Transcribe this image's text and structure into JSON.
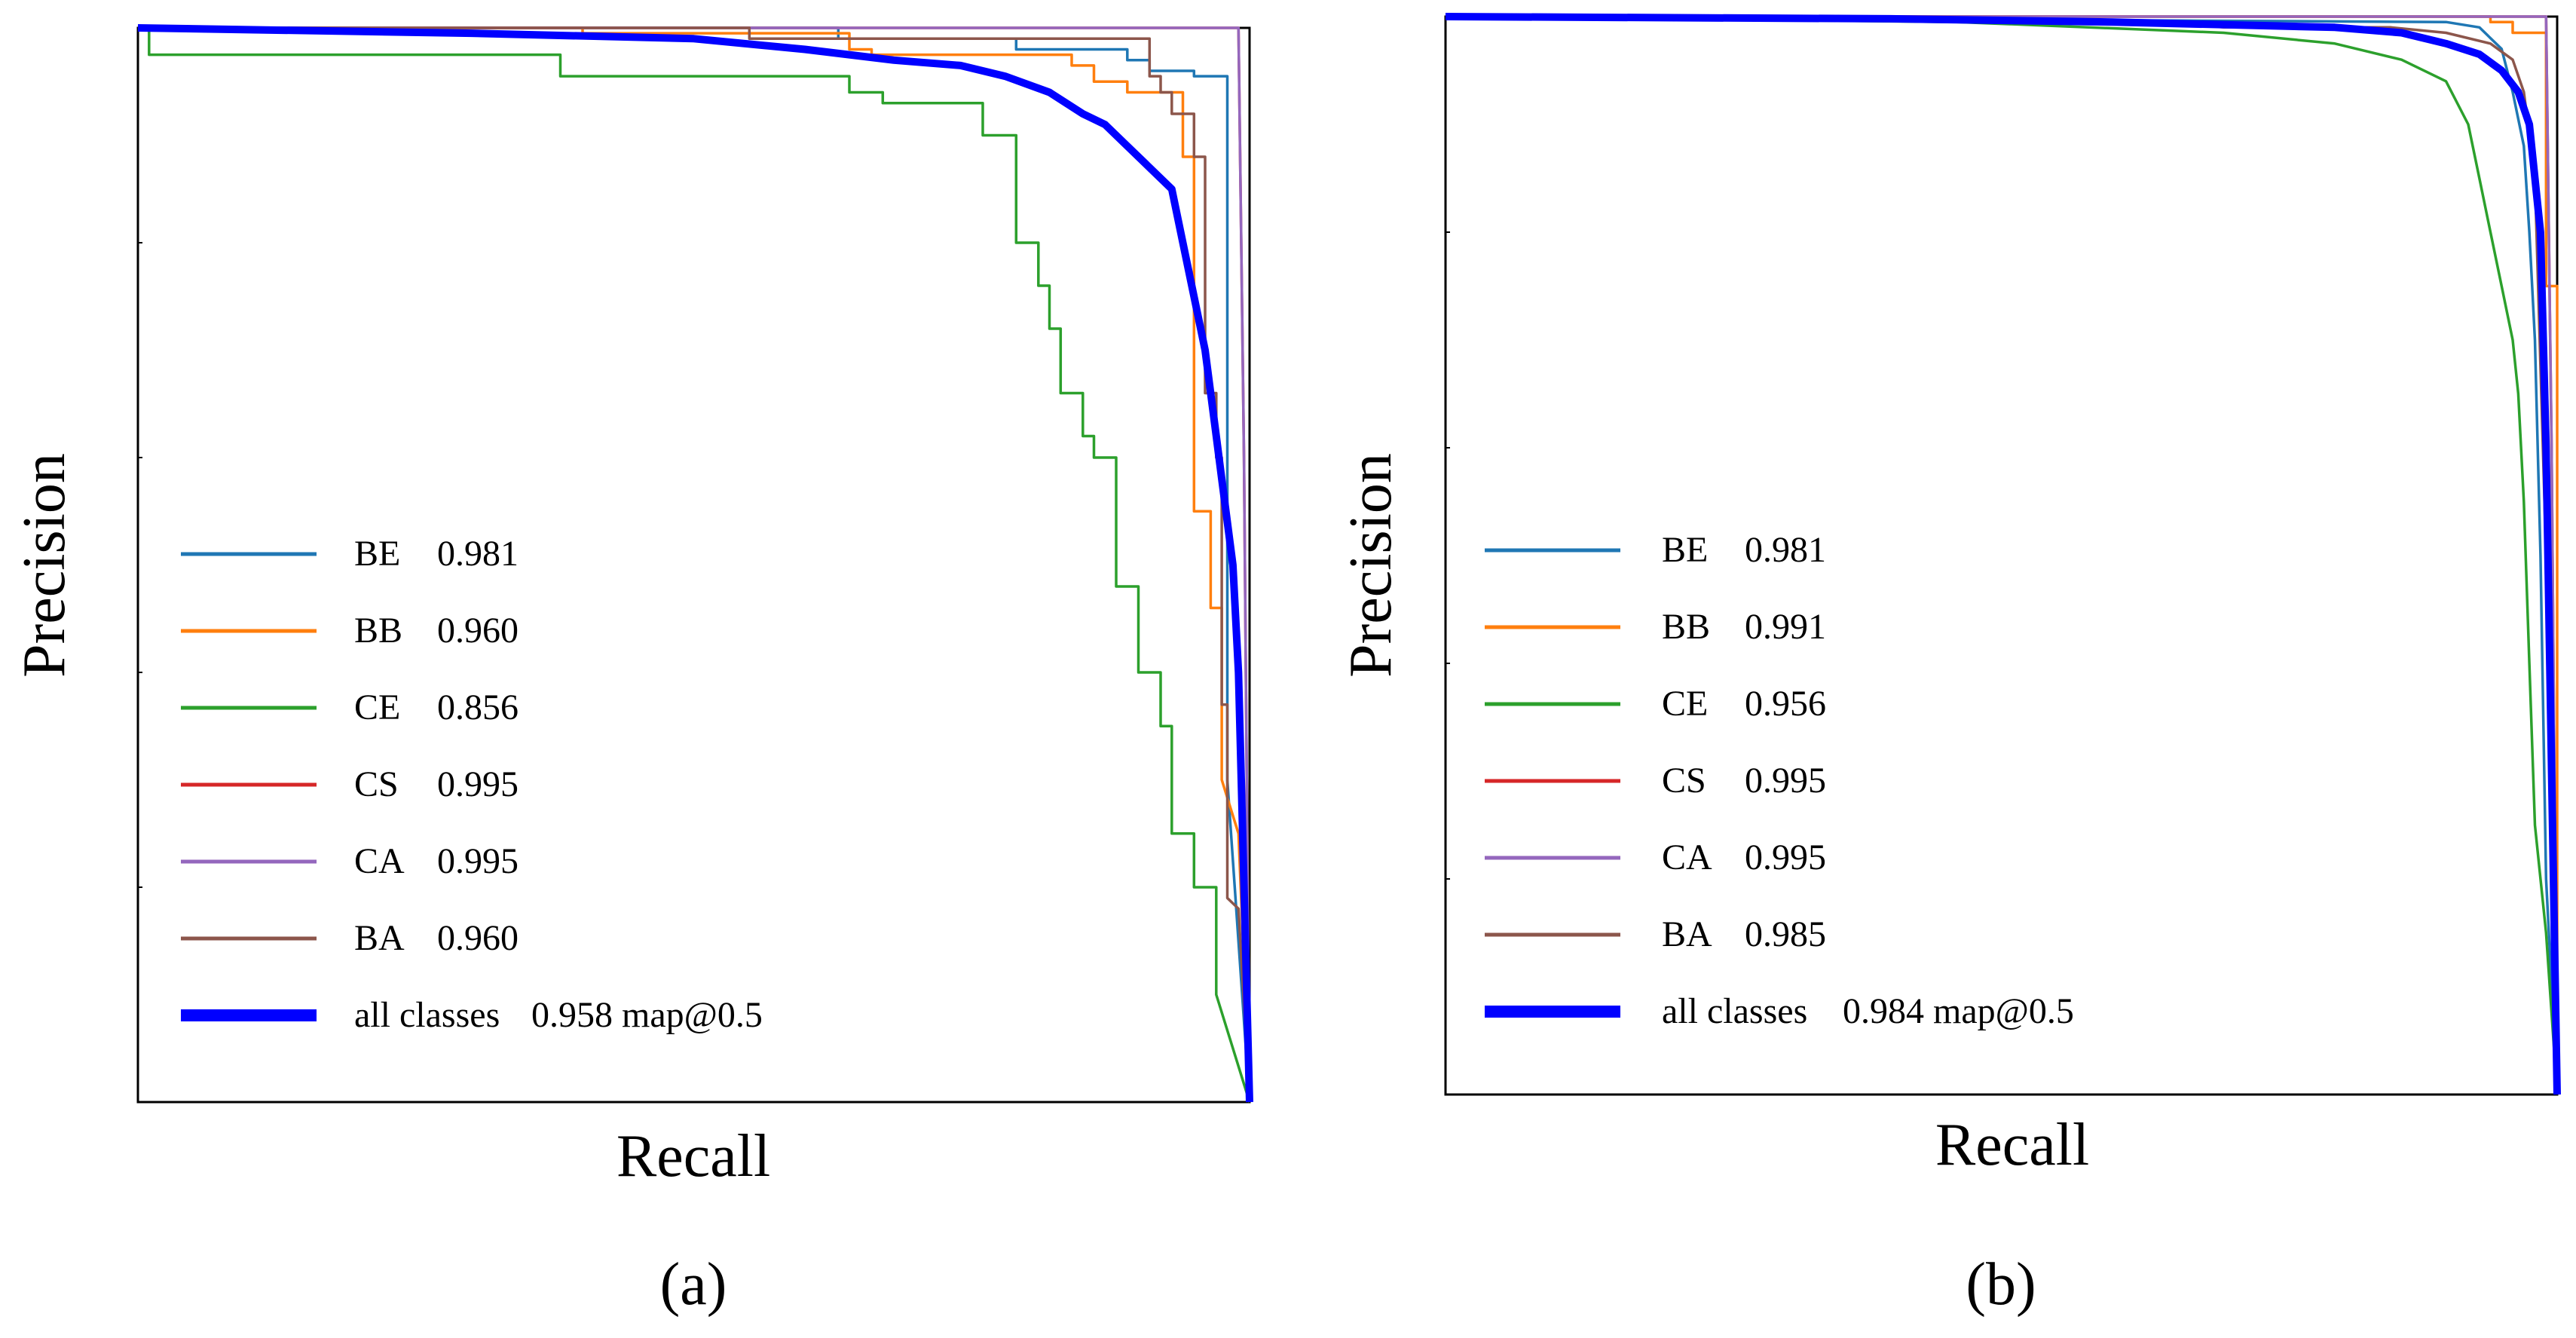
{
  "chart_data": [
    {
      "type": "line",
      "caption": "(a)",
      "xlabel": "Recall",
      "ylabel": "Precision",
      "xlim": [
        0,
        1
      ],
      "ylim": [
        0,
        1
      ],
      "grid": false,
      "legend_position": "center-left",
      "series": [
        {
          "name": "BE",
          "value": "0.981",
          "color": "#1f77b4",
          "x": [
            0,
            0.63,
            0.63,
            0.79,
            0.79,
            0.89,
            0.89,
            0.91,
            0.91,
            0.95,
            0.95,
            0.98,
            0.98,
            1.0
          ],
          "y": [
            1.0,
            1.0,
            0.99,
            0.99,
            0.98,
            0.98,
            0.97,
            0.97,
            0.96,
            0.96,
            0.955,
            0.955,
            0.3,
            0.0
          ]
        },
        {
          "name": "BB",
          "value": "0.960",
          "color": "#ff7f0e",
          "x": [
            0,
            0.4,
            0.4,
            0.64,
            0.64,
            0.66,
            0.66,
            0.84,
            0.84,
            0.86,
            0.86,
            0.89,
            0.89,
            0.94,
            0.94,
            0.95,
            0.95,
            0.965,
            0.965,
            0.975,
            0.975,
            0.99,
            1.0
          ],
          "y": [
            1.0,
            1.0,
            0.995,
            0.995,
            0.98,
            0.98,
            0.975,
            0.975,
            0.965,
            0.965,
            0.95,
            0.95,
            0.94,
            0.94,
            0.88,
            0.88,
            0.55,
            0.55,
            0.46,
            0.46,
            0.3,
            0.25,
            0.0
          ]
        },
        {
          "name": "CE",
          "value": "0.856",
          "color": "#2ca02c",
          "x": [
            0,
            0.01,
            0.01,
            0.38,
            0.38,
            0.64,
            0.64,
            0.67,
            0.67,
            0.76,
            0.76,
            0.79,
            0.79,
            0.81,
            0.81,
            0.82,
            0.82,
            0.83,
            0.83,
            0.85,
            0.85,
            0.86,
            0.86,
            0.88,
            0.88,
            0.9,
            0.9,
            0.92,
            0.92,
            0.93,
            0.93,
            0.95,
            0.95,
            0.97,
            0.97,
            1.0
          ],
          "y": [
            1.0,
            1.0,
            0.975,
            0.975,
            0.955,
            0.955,
            0.94,
            0.94,
            0.93,
            0.93,
            0.9,
            0.9,
            0.8,
            0.8,
            0.76,
            0.76,
            0.72,
            0.72,
            0.66,
            0.66,
            0.62,
            0.62,
            0.6,
            0.6,
            0.48,
            0.48,
            0.4,
            0.4,
            0.35,
            0.35,
            0.25,
            0.25,
            0.2,
            0.2,
            0.1,
            0.0
          ]
        },
        {
          "name": "CS",
          "value": "0.995",
          "color": "#d62728",
          "x": [
            0,
            0.99,
            0.995,
            1.0
          ],
          "y": [
            1.0,
            1.0,
            0.6,
            0.0
          ]
        },
        {
          "name": "CA",
          "value": "0.995",
          "color": "#9467bd",
          "x": [
            0,
            0.99,
            0.995,
            1.0
          ],
          "y": [
            1.0,
            1.0,
            0.6,
            0.0
          ]
        },
        {
          "name": "BA",
          "value": "0.960",
          "color": "#8c564b",
          "x": [
            0,
            0.55,
            0.55,
            0.91,
            0.91,
            0.92,
            0.92,
            0.93,
            0.93,
            0.95,
            0.95,
            0.96,
            0.96,
            0.97,
            0.97,
            0.975,
            0.975,
            0.98,
            0.98,
            0.99,
            1.0
          ],
          "y": [
            1.0,
            1.0,
            0.99,
            0.99,
            0.955,
            0.955,
            0.94,
            0.94,
            0.92,
            0.92,
            0.88,
            0.88,
            0.66,
            0.66,
            0.6,
            0.6,
            0.37,
            0.37,
            0.19,
            0.18,
            0.0
          ]
        },
        {
          "name": "all classes",
          "value": "0.958 map@0.5",
          "color": "#0000ff",
          "bold": true,
          "x": [
            0,
            0.3,
            0.5,
            0.6,
            0.68,
            0.74,
            0.78,
            0.82,
            0.85,
            0.87,
            0.89,
            0.91,
            0.93,
            0.94,
            0.96,
            0.97,
            0.975,
            0.985,
            0.99,
            1.0
          ],
          "y": [
            1.0,
            0.995,
            0.99,
            0.98,
            0.97,
            0.965,
            0.955,
            0.94,
            0.92,
            0.91,
            0.89,
            0.87,
            0.85,
            0.8,
            0.7,
            0.62,
            0.58,
            0.5,
            0.4,
            0.0
          ]
        }
      ]
    },
    {
      "type": "line",
      "caption": "(b)",
      "xlabel": "Recall",
      "ylabel": "Precision",
      "xlim": [
        0,
        1
      ],
      "ylim": [
        0,
        1
      ],
      "grid": false,
      "legend_position": "center-left",
      "series": [
        {
          "name": "BE",
          "value": "0.981",
          "color": "#1f77b4",
          "x": [
            0,
            0.9,
            0.93,
            0.95,
            0.96,
            0.97,
            0.975,
            0.98,
            0.985,
            0.99,
            1.0
          ],
          "y": [
            1.0,
            0.995,
            0.99,
            0.97,
            0.93,
            0.88,
            0.8,
            0.7,
            0.5,
            0.2,
            0.0
          ]
        },
        {
          "name": "BB",
          "value": "0.991",
          "color": "#ff7f0e",
          "x": [
            0,
            0.94,
            0.94,
            0.96,
            0.96,
            0.99,
            0.99,
            1.0,
            1.0
          ],
          "y": [
            1.0,
            1.0,
            0.995,
            0.995,
            0.985,
            0.985,
            0.75,
            0.75,
            0.0
          ]
        },
        {
          "name": "CE",
          "value": "0.956",
          "color": "#2ca02c",
          "x": [
            0,
            0.46,
            0.7,
            0.8,
            0.86,
            0.9,
            0.92,
            0.93,
            0.94,
            0.95,
            0.96,
            0.965,
            0.97,
            0.975,
            0.98,
            0.99,
            1.0
          ],
          "y": [
            1.0,
            0.995,
            0.985,
            0.975,
            0.96,
            0.94,
            0.9,
            0.85,
            0.8,
            0.75,
            0.7,
            0.65,
            0.55,
            0.4,
            0.25,
            0.15,
            0.0
          ]
        },
        {
          "name": "CS",
          "value": "0.995",
          "color": "#d62728",
          "x": [
            0,
            0.99,
            0.995,
            1.0
          ],
          "y": [
            1.0,
            1.0,
            0.6,
            0.0
          ]
        },
        {
          "name": "CA",
          "value": "0.995",
          "color": "#9467bd",
          "x": [
            0,
            0.99,
            0.995,
            1.0
          ],
          "y": [
            1.0,
            1.0,
            0.6,
            0.0
          ]
        },
        {
          "name": "BA",
          "value": "0.985",
          "color": "#8c564b",
          "x": [
            0,
            0.6,
            0.65,
            0.7,
            0.75,
            0.8,
            0.85,
            0.9,
            0.94,
            0.96,
            0.97,
            0.98,
            0.99,
            1.0
          ],
          "y": [
            1.0,
            0.995,
            0.995,
            0.99,
            0.99,
            0.99,
            0.99,
            0.985,
            0.975,
            0.96,
            0.93,
            0.85,
            0.5,
            0.0
          ]
        },
        {
          "name": "all classes",
          "value": "0.984 map@0.5",
          "color": "#0000ff",
          "bold": true,
          "x": [
            0,
            0.4,
            0.6,
            0.8,
            0.86,
            0.9,
            0.93,
            0.95,
            0.965,
            0.975,
            0.985,
            0.99,
            0.995,
            1.0
          ],
          "y": [
            1.0,
            0.998,
            0.995,
            0.99,
            0.985,
            0.975,
            0.965,
            0.95,
            0.93,
            0.9,
            0.8,
            0.6,
            0.3,
            0.0
          ]
        }
      ]
    }
  ]
}
